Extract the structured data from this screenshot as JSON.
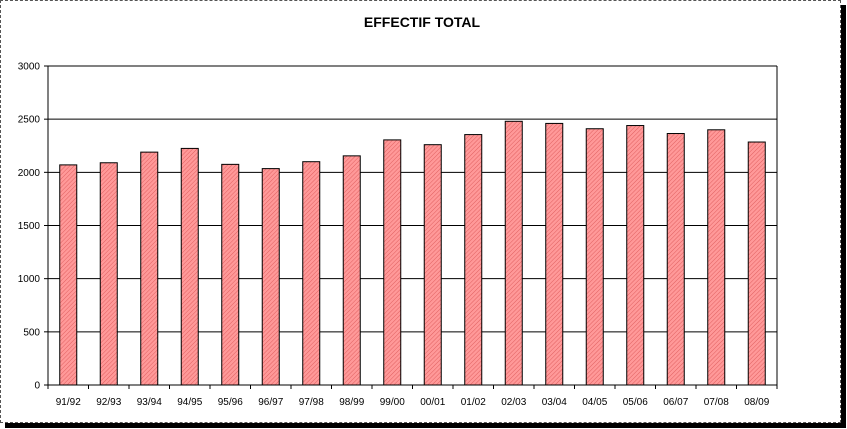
{
  "chart_data": {
    "type": "bar",
    "title": "EFFECTIF TOTAL",
    "xlabel": "",
    "ylabel": "",
    "categories": [
      "91/92",
      "92/93",
      "93/94",
      "94/95",
      "95/96",
      "96/97",
      "97/98",
      "98/99",
      "99/00",
      "00/01",
      "01/02",
      "02/03",
      "03/04",
      "04/05",
      "05/06",
      "06/07",
      "07/08",
      "08/09"
    ],
    "values": [
      2070,
      2090,
      2190,
      2225,
      2075,
      2035,
      2100,
      2155,
      2305,
      2260,
      2355,
      2480,
      2460,
      2410,
      2440,
      2365,
      2400,
      2285
    ],
    "ylim": [
      0,
      3000
    ],
    "yticks": [
      0,
      500,
      1000,
      1500,
      2000,
      2500,
      3000
    ],
    "grid": true,
    "legend": "none",
    "bar_fill": "#ff9999",
    "bar_hatch": "#e05050",
    "bar_stroke": "#000000"
  }
}
